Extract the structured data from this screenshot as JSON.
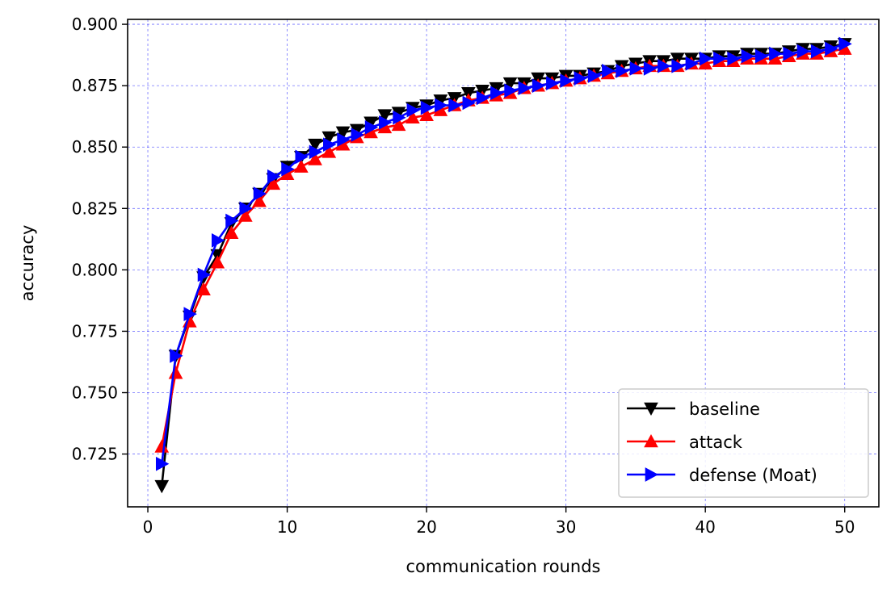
{
  "chart_data": {
    "type": "line",
    "title": "",
    "xlabel": "communication rounds",
    "ylabel": "accuracy",
    "xlim": [
      -1.45,
      52.45
    ],
    "ylim": [
      0.7035,
      0.902
    ],
    "xticks": [
      0,
      10,
      20,
      30,
      40,
      50
    ],
    "yticks": [
      0.725,
      0.75,
      0.775,
      0.8,
      0.825,
      0.85,
      0.875,
      0.9
    ],
    "xtick_labels": [
      "0",
      "10",
      "20",
      "30",
      "40",
      "50"
    ],
    "ytick_labels": [
      "0.725",
      "0.750",
      "0.775",
      "0.800",
      "0.825",
      "0.850",
      "0.875",
      "0.900"
    ],
    "grid": true,
    "grid_color": "#0000ff",
    "legend_position": "lower-right",
    "x": [
      1,
      2,
      3,
      4,
      5,
      6,
      7,
      8,
      9,
      10,
      11,
      12,
      13,
      14,
      15,
      16,
      17,
      18,
      19,
      20,
      21,
      22,
      23,
      24,
      25,
      26,
      27,
      28,
      29,
      30,
      31,
      32,
      33,
      34,
      35,
      36,
      37,
      38,
      39,
      40,
      41,
      42,
      43,
      44,
      45,
      46,
      47,
      48,
      49,
      50
    ],
    "series": [
      {
        "name": "baseline",
        "color": "#000000",
        "marker": "triangle-down",
        "values": [
          0.712,
          0.765,
          0.781,
          0.797,
          0.806,
          0.819,
          0.825,
          0.831,
          0.837,
          0.842,
          0.846,
          0.851,
          0.854,
          0.856,
          0.857,
          0.86,
          0.863,
          0.864,
          0.866,
          0.867,
          0.869,
          0.87,
          0.872,
          0.873,
          0.874,
          0.876,
          0.876,
          0.878,
          0.878,
          0.879,
          0.879,
          0.88,
          0.881,
          0.883,
          0.884,
          0.885,
          0.885,
          0.886,
          0.886,
          0.886,
          0.887,
          0.887,
          0.888,
          0.888,
          0.888,
          0.889,
          0.89,
          0.89,
          0.891,
          0.892
        ]
      },
      {
        "name": "attack",
        "color": "#ff0000",
        "marker": "triangle-up",
        "values": [
          0.728,
          0.758,
          0.779,
          0.792,
          0.803,
          0.815,
          0.822,
          0.828,
          0.835,
          0.839,
          0.842,
          0.845,
          0.848,
          0.851,
          0.854,
          0.856,
          0.858,
          0.859,
          0.862,
          0.863,
          0.865,
          0.867,
          0.869,
          0.87,
          0.871,
          0.872,
          0.874,
          0.875,
          0.876,
          0.877,
          0.878,
          0.879,
          0.88,
          0.881,
          0.882,
          0.883,
          0.883,
          0.883,
          0.884,
          0.884,
          0.885,
          0.885,
          0.886,
          0.886,
          0.886,
          0.887,
          0.888,
          0.888,
          0.889,
          0.89
        ]
      },
      {
        "name": "defense (Moat)",
        "color": "#0000ff",
        "marker": "triangle-right",
        "values": [
          0.721,
          0.765,
          0.782,
          0.798,
          0.812,
          0.82,
          0.825,
          0.831,
          0.838,
          0.841,
          0.846,
          0.848,
          0.851,
          0.853,
          0.855,
          0.858,
          0.86,
          0.862,
          0.865,
          0.866,
          0.867,
          0.867,
          0.868,
          0.87,
          0.872,
          0.873,
          0.874,
          0.875,
          0.876,
          0.877,
          0.878,
          0.879,
          0.881,
          0.881,
          0.882,
          0.882,
          0.883,
          0.883,
          0.884,
          0.886,
          0.886,
          0.886,
          0.887,
          0.887,
          0.888,
          0.888,
          0.889,
          0.889,
          0.89,
          0.892
        ]
      }
    ]
  }
}
